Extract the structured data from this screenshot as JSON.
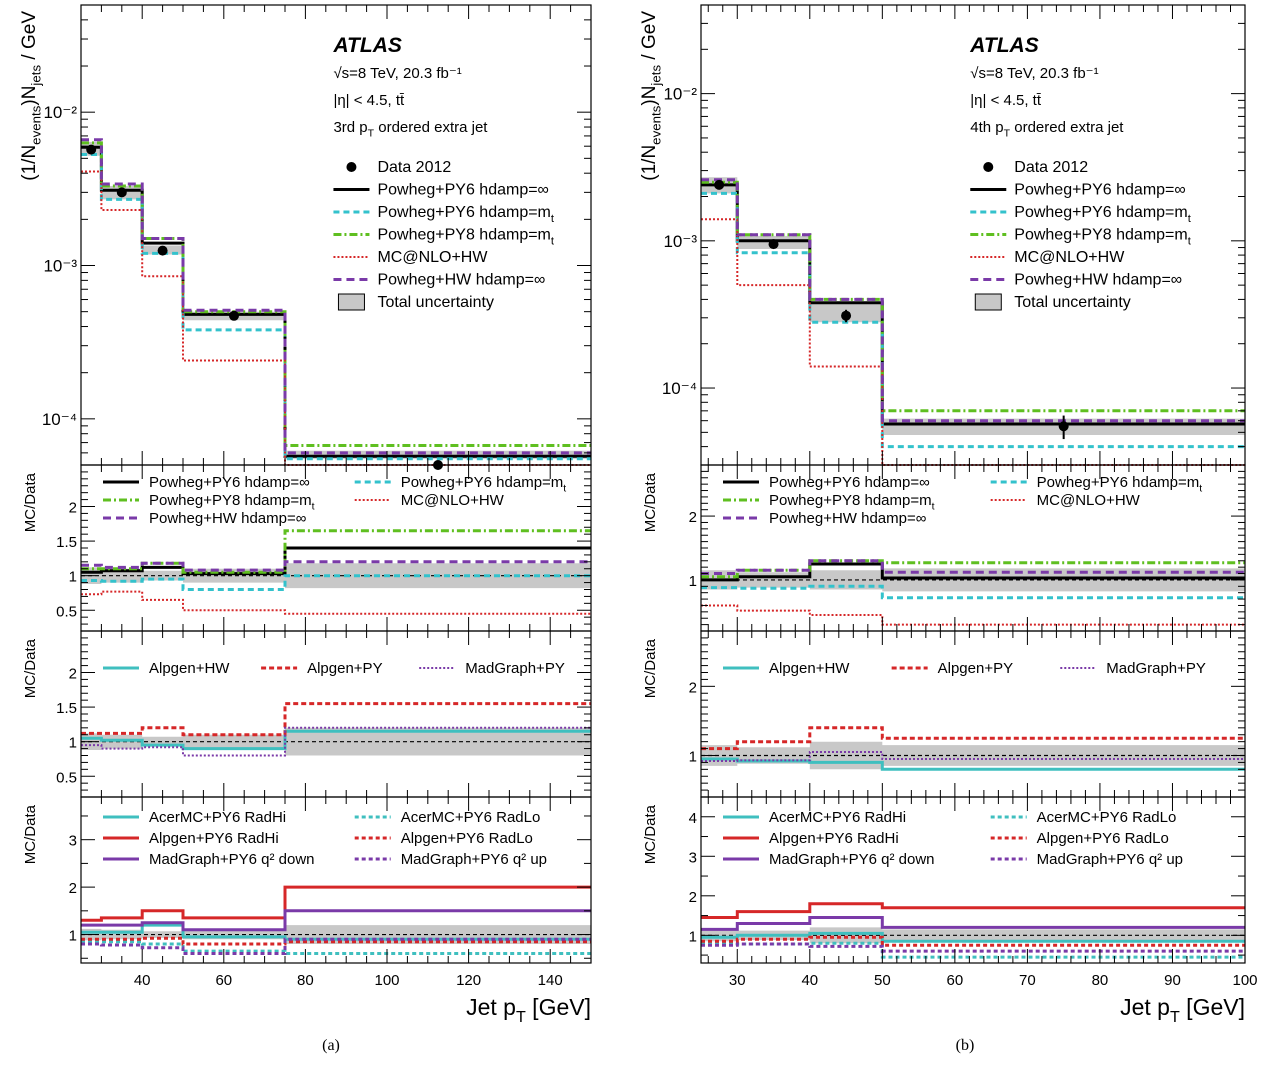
{
  "figure": {
    "experiment": "ATLAS",
    "energy_lumi": "√s=8 TeV, 20.3 fb⁻¹",
    "selection": "|η| < 4.5, tt̄",
    "xlabel": "Jet p_T [GeV]",
    "ylabel_top": "(1/N_events)N_jets / GeV",
    "ylabel_ratio": "MC/Data"
  },
  "styles": {
    "Data 2012": {
      "color": "#000000",
      "dash": "",
      "width": 0,
      "marker": true
    },
    "Powheg+PY6 hdamp=∞": {
      "color": "#000000",
      "dash": "",
      "width": 3
    },
    "Powheg+PY6 hdamp=m_t": {
      "color": "#33c2cc",
      "dash": "6,4",
      "width": 3
    },
    "Powheg+PY8 hdamp=m_t": {
      "color": "#5fbf20",
      "dash": "8,3,2,3",
      "width": 3
    },
    "MC@NLO+HW": {
      "color": "#d62728",
      "dash": "2,2",
      "width": 2
    },
    "Powheg+HW hdamp=∞": {
      "color": "#7a3aa8",
      "dash": "8,5",
      "width": 3
    },
    "Total uncertainty": {
      "color": "#c8c8c8",
      "box": true
    },
    "Alpgen+HW": {
      "color": "#3fbfbf",
      "dash": "",
      "width": 3
    },
    "Alpgen+PY": {
      "color": "#d62728",
      "dash": "5,3",
      "width": 3
    },
    "MadGraph+PY": {
      "color": "#7a3aa8",
      "dash": "2,2",
      "width": 2
    },
    "AcerMC+PY6 RadHi": {
      "color": "#3fbfbf",
      "dash": "",
      "width": 3
    },
    "AcerMC+PY6 RadLo": {
      "color": "#3fbfbf",
      "dash": "4,3",
      "width": 3
    },
    "Alpgen+PY6 RadHi": {
      "color": "#d62728",
      "dash": "",
      "width": 3
    },
    "Alpgen+PY6 RadLo": {
      "color": "#d62728",
      "dash": "4,3",
      "width": 3
    },
    "MadGraph+PY6 q² down": {
      "color": "#7a3aa8",
      "dash": "",
      "width": 3
    },
    "MadGraph+PY6 q² up": {
      "color": "#7a3aa8",
      "dash": "4,3",
      "width": 3
    }
  },
  "chart_data": [
    {
      "panel_id": "a",
      "caption": "(a)",
      "type": "line",
      "subtitle": "3rd p_T ordered extra jet",
      "bin_edges": [
        25,
        30,
        40,
        50,
        75,
        150
      ],
      "xlim": [
        25,
        150
      ],
      "xticks": [
        40,
        60,
        80,
        100,
        120,
        140
      ],
      "main": {
        "yscale": "log",
        "ylim": [
          5e-05,
          0.05
        ],
        "yticks": [
          {
            "v": 0.0001,
            "l": "10⁻⁴"
          },
          {
            "v": 0.001,
            "l": "10⁻³"
          },
          {
            "v": 0.01,
            "l": "10⁻²"
          }
        ],
        "data": {
          "x": [
            27.5,
            35,
            45,
            62.5,
            112.5
          ],
          "y": [
            0.0057,
            0.003,
            0.00125,
            0.00047,
            5e-05
          ],
          "yerr": [
            0.0003,
            0.00015,
            6e-05,
            2e-05,
            3e-06
          ]
        },
        "band": {
          "low": [
            0.0052,
            0.0027,
            0.00118,
            0.00044,
            5.5e-05
          ],
          "high": [
            0.0064,
            0.0033,
            0.00135,
            0.0005,
            6.2e-05
          ]
        },
        "series": [
          {
            "name": "Powheg+PY6 hdamp=∞",
            "values": [
              0.0059,
              0.0031,
              0.0014,
              0.00048,
              5.7e-05
            ]
          },
          {
            "name": "Powheg+PY6 hdamp=m_t",
            "values": [
              0.0053,
              0.0027,
              0.0012,
              0.00038,
              5.5e-05
            ]
          },
          {
            "name": "Powheg+PY8 hdamp=m_t",
            "values": [
              0.0063,
              0.0033,
              0.0015,
              0.0005,
              6.7e-05
            ]
          },
          {
            "name": "MC@NLO+HW",
            "values": [
              0.0041,
              0.0023,
              0.00085,
              0.00024,
              5e-05
            ]
          },
          {
            "name": "Powheg+HW hdamp=∞",
            "values": [
              0.0066,
              0.0034,
              0.0015,
              0.00051,
              6e-05
            ]
          }
        ],
        "legend": [
          "Data 2012",
          "Powheg+PY6 hdamp=∞",
          "Powheg+PY6 hdamp=m_t",
          "Powheg+PY8 hdamp=m_t",
          "MC@NLO+HW",
          "Powheg+HW hdamp=∞",
          "Total uncertainty"
        ]
      },
      "ratios": [
        {
          "ylim": [
            0.2,
            2.6
          ],
          "yticks": [
            {
              "v": 0.5,
              "l": "0.5"
            },
            {
              "v": 1,
              "l": "1"
            },
            {
              "v": 1.5,
              "l": "1.5"
            },
            {
              "v": 2,
              "l": "2"
            }
          ],
          "band": {
            "low": [
              0.88,
              0.9,
              0.93,
              0.9,
              0.82
            ],
            "high": [
              1.12,
              1.1,
              1.07,
              1.1,
              1.18
            ]
          },
          "series": [
            {
              "name": "Powheg+PY6 hdamp=∞",
              "values": [
                1.05,
                1.07,
                1.12,
                1.03,
                1.4
              ]
            },
            {
              "name": "Powheg+PY6 hdamp=m_t",
              "values": [
                0.93,
                0.92,
                0.95,
                0.8,
                1.0
              ]
            },
            {
              "name": "Powheg+PY8 hdamp=m_t",
              "values": [
                1.1,
                1.1,
                1.18,
                1.05,
                1.65
              ]
            },
            {
              "name": "MC@NLO+HW",
              "values": [
                0.73,
                0.77,
                0.65,
                0.5,
                0.45
              ]
            },
            {
              "name": "Powheg+HW hdamp=∞",
              "values": [
                1.15,
                1.12,
                1.18,
                1.08,
                1.2
              ]
            }
          ],
          "legend": [
            "Powheg+PY6 hdamp=∞",
            "Powheg+PY6 hdamp=m_t",
            "Powheg+PY8 hdamp=m_t",
            "MC@NLO+HW",
            "Powheg+HW hdamp=∞"
          ]
        },
        {
          "ylim": [
            0.2,
            2.6
          ],
          "yticks": [
            {
              "v": 0.5,
              "l": "0.5"
            },
            {
              "v": 1,
              "l": "1"
            },
            {
              "v": 1.5,
              "l": "1.5"
            },
            {
              "v": 2,
              "l": "2"
            }
          ],
          "band": {
            "low": [
              0.88,
              0.9,
              0.93,
              0.9,
              0.8
            ],
            "high": [
              1.12,
              1.1,
              1.07,
              1.1,
              1.2
            ]
          },
          "series": [
            {
              "name": "Alpgen+HW",
              "values": [
                1.05,
                1.02,
                0.95,
                0.9,
                1.15
              ]
            },
            {
              "name": "Alpgen+PY",
              "values": [
                1.12,
                1.12,
                1.2,
                1.1,
                1.55
              ]
            },
            {
              "name": "MadGraph+PY",
              "values": [
                0.95,
                0.9,
                0.92,
                0.8,
                1.2
              ]
            }
          ],
          "legend": [
            "Alpgen+HW",
            "Alpgen+PY",
            "MadGraph+PY"
          ]
        },
        {
          "ylim": [
            0.4,
            3.9
          ],
          "yticks": [
            {
              "v": 1,
              "l": "1"
            },
            {
              "v": 2,
              "l": "2"
            },
            {
              "v": 3,
              "l": "3"
            }
          ],
          "band": {
            "low": [
              0.88,
              0.9,
              0.93,
              0.9,
              0.8
            ],
            "high": [
              1.12,
              1.1,
              1.07,
              1.1,
              1.2
            ]
          },
          "series": [
            {
              "name": "AcerMC+PY6 RadHi",
              "values": [
                1.05,
                1.05,
                1.2,
                0.95,
                0.9
              ]
            },
            {
              "name": "Alpgen+PY6 RadHi",
              "values": [
                1.3,
                1.35,
                1.5,
                1.35,
                2.0
              ]
            },
            {
              "name": "MadGraph+PY6 q² down",
              "values": [
                1.2,
                1.2,
                1.25,
                1.1,
                1.5
              ]
            },
            {
              "name": "AcerMC+PY6 RadLo",
              "values": [
                0.85,
                0.85,
                0.8,
                0.65,
                0.6
              ]
            },
            {
              "name": "Alpgen+PY6 RadLo",
              "values": [
                0.9,
                0.9,
                0.92,
                0.8,
                0.85
              ]
            },
            {
              "name": "MadGraph+PY6 q² up",
              "values": [
                0.8,
                0.78,
                0.72,
                0.6,
                0.9
              ]
            }
          ],
          "legend": [
            "AcerMC+PY6 RadHi",
            "AcerMC+PY6 RadLo",
            "Alpgen+PY6 RadHi",
            "Alpgen+PY6 RadLo",
            "MadGraph+PY6 q² down",
            "MadGraph+PY6 q² up"
          ]
        }
      ]
    },
    {
      "panel_id": "b",
      "caption": "(b)",
      "type": "line",
      "subtitle": "4th p_T ordered extra jet",
      "bin_edges": [
        25,
        30,
        40,
        50,
        100
      ],
      "xlim": [
        25,
        100
      ],
      "xticks": [
        30,
        40,
        50,
        60,
        70,
        80,
        90,
        100
      ],
      "main": {
        "yscale": "log",
        "ylim": [
          3e-05,
          0.04
        ],
        "yticks": [
          {
            "v": 0.0001,
            "l": "10⁻⁴"
          },
          {
            "v": 0.001,
            "l": "10⁻³"
          },
          {
            "v": 0.01,
            "l": "10⁻²"
          }
        ],
        "data": {
          "x": [
            27.5,
            35,
            45,
            75
          ],
          "y": [
            0.0024,
            0.00095,
            0.00031,
            5.5e-05
          ],
          "yerr": [
            0.0001,
            5e-05,
            3e-05,
            1e-05
          ]
        },
        "band": {
          "low": [
            0.0021,
            0.00088,
            0.00028,
            4.8e-05
          ],
          "high": [
            0.0027,
            0.00108,
            0.00038,
            6.2e-05
          ]
        },
        "series": [
          {
            "name": "Powheg+PY6 hdamp=∞",
            "values": [
              0.0024,
              0.001,
              0.00038,
              5.7e-05
            ]
          },
          {
            "name": "Powheg+PY6 hdamp=m_t",
            "values": [
              0.0021,
              0.00083,
              0.00028,
              4e-05
            ]
          },
          {
            "name": "Powheg+PY8 hdamp=m_t",
            "values": [
              0.0025,
              0.0011,
              0.0004,
              7e-05
            ]
          },
          {
            "name": "MC@NLO+HW",
            "values": [
              0.0014,
              0.0005,
              0.00014,
              3e-05
            ]
          },
          {
            "name": "Powheg+HW hdamp=∞",
            "values": [
              0.0026,
              0.0011,
              0.0004,
              6e-05
            ]
          }
        ],
        "legend": [
          "Data 2012",
          "Powheg+PY6 hdamp=∞",
          "Powheg+PY6 hdamp=m_t",
          "Powheg+PY8 hdamp=m_t",
          "MC@NLO+HW",
          "Powheg+HW hdamp=∞",
          "Total uncertainty"
        ]
      },
      "ratios": [
        {
          "ylim": [
            0.2,
            2.8
          ],
          "yticks": [
            {
              "v": 1,
              "l": "1"
            },
            {
              "v": 2,
              "l": "2"
            }
          ],
          "band": {
            "low": [
              0.85,
              0.88,
              0.85,
              0.82
            ],
            "high": [
              1.15,
              1.12,
              1.15,
              1.18
            ]
          },
          "series": [
            {
              "name": "Powheg+PY6 hdamp=∞",
              "values": [
                1.0,
                1.05,
                1.25,
                1.03
              ]
            },
            {
              "name": "Powheg+PY6 hdamp=m_t",
              "values": [
                0.88,
                0.87,
                0.9,
                0.72
              ]
            },
            {
              "name": "Powheg+PY8 hdamp=m_t",
              "values": [
                1.05,
                1.15,
                1.3,
                1.27
              ]
            },
            {
              "name": "MC@NLO+HW",
              "values": [
                0.6,
                0.52,
                0.45,
                0.3
              ]
            },
            {
              "name": "Powheg+HW hdamp=∞",
              "values": [
                1.1,
                1.15,
                1.3,
                1.12
              ]
            }
          ],
          "legend": [
            "Powheg+PY6 hdamp=∞",
            "Powheg+PY6 hdamp=m_t",
            "Powheg+PY8 hdamp=m_t",
            "MC@NLO+HW",
            "Powheg+HW hdamp=∞"
          ]
        },
        {
          "ylim": [
            0.4,
            2.8
          ],
          "yticks": [
            {
              "v": 1,
              "l": "1"
            },
            {
              "v": 2,
              "l": "2"
            }
          ],
          "band": {
            "low": [
              0.85,
              0.88,
              0.8,
              0.85
            ],
            "high": [
              1.15,
              1.12,
              1.2,
              1.15
            ]
          },
          "series": [
            {
              "name": "Alpgen+HW",
              "values": [
                0.95,
                0.92,
                0.9,
                0.8
              ]
            },
            {
              "name": "Alpgen+PY",
              "values": [
                1.1,
                1.2,
                1.4,
                1.25
              ]
            },
            {
              "name": "MadGraph+PY",
              "values": [
                0.92,
                0.93,
                1.05,
                0.95
              ]
            }
          ],
          "legend": [
            "Alpgen+HW",
            "Alpgen+PY",
            "MadGraph+PY"
          ]
        },
        {
          "ylim": [
            0.3,
            4.5
          ],
          "yticks": [
            {
              "v": 1,
              "l": "1"
            },
            {
              "v": 2,
              "l": "2"
            },
            {
              "v": 3,
              "l": "3"
            },
            {
              "v": 4,
              "l": "4"
            }
          ],
          "band": {
            "low": [
              0.85,
              0.88,
              0.8,
              0.85
            ],
            "high": [
              1.15,
              1.12,
              1.2,
              1.15
            ]
          },
          "series": [
            {
              "name": "AcerMC+PY6 RadHi",
              "values": [
                0.95,
                1.0,
                1.05,
                0.85
              ]
            },
            {
              "name": "Alpgen+PY6 RadHi",
              "values": [
                1.45,
                1.6,
                1.8,
                1.7
              ]
            },
            {
              "name": "MadGraph+PY6 q² down",
              "values": [
                1.15,
                1.3,
                1.45,
                1.2
              ]
            },
            {
              "name": "AcerMC+PY6 RadLo",
              "values": [
                0.8,
                0.78,
                0.8,
                0.45
              ]
            },
            {
              "name": "Alpgen+PY6 RadLo",
              "values": [
                0.85,
                0.9,
                0.95,
                0.75
              ]
            },
            {
              "name": "MadGraph+PY6 q² up",
              "values": [
                0.75,
                0.78,
                0.72,
                0.6
              ]
            }
          ],
          "legend": [
            "AcerMC+PY6 RadHi",
            "AcerMC+PY6 RadLo",
            "Alpgen+PY6 RadHi",
            "Alpgen+PY6 RadLo",
            "MadGraph+PY6 q² down",
            "MadGraph+PY6 q² up"
          ]
        }
      ]
    }
  ]
}
